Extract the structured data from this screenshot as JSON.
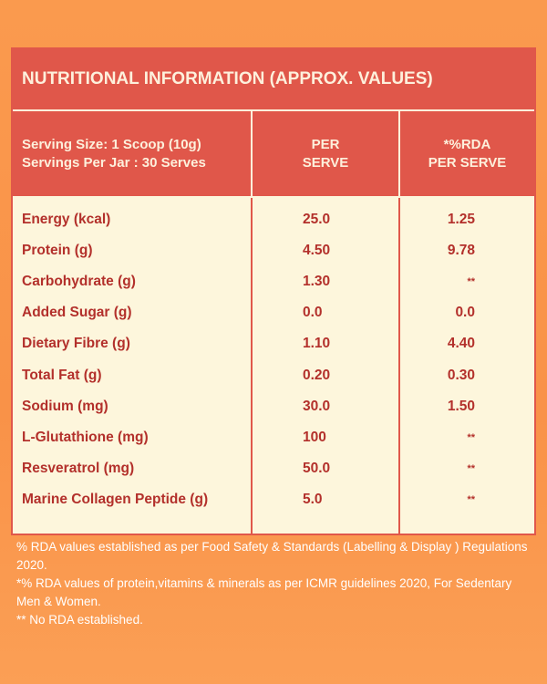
{
  "header": {
    "title": "NUTRITIONAL INFORMATION (APPROX. VALUES)"
  },
  "table": {
    "columns": [
      [
        "Serving Size: 1 Scoop (10g)",
        "Servings Per Jar : 30 Serves"
      ],
      [
        "PER",
        "SERVE"
      ],
      [
        "*%RDA",
        "PER SERVE"
      ]
    ],
    "rows": [
      [
        "Energy (kcal)",
        "25.0",
        "1.25"
      ],
      [
        "Protein (g)",
        "4.50",
        "9.78"
      ],
      [
        "Carbohydrate (g)",
        "1.30",
        "**"
      ],
      [
        "Added Sugar (g)",
        "0.0",
        "0.0"
      ],
      [
        "Dietary Fibre (g)",
        "1.10",
        "4.40"
      ],
      [
        "Total Fat (g)",
        "0.20",
        "0.30"
      ],
      [
        "Sodium (mg)",
        "30.0",
        "1.50"
      ],
      [
        "L-Glutathione (mg)",
        "100",
        "**"
      ],
      [
        "Resveratrol (mg)",
        "50.0",
        "**"
      ],
      [
        "Marine Collagen Peptide (g)",
        "5.0",
        "**"
      ]
    ]
  },
  "footnotes": [
    "% RDA values established as per Food Safety & Standards (Labelling & Display ) Regulations 2020.",
    "*% RDA values of protein,vitamins & minerals as per ICMR guidelines 2020, For Sedentary Men & Women.",
    "** No RDA established."
  ]
}
